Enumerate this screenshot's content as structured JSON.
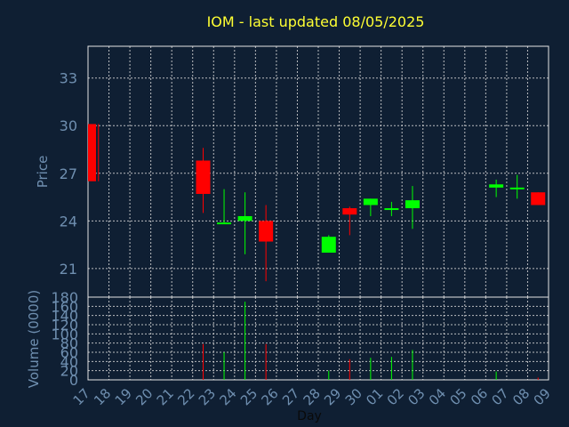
{
  "chart_data": {
    "type": "candlestick",
    "title": "IOM - last updated 08/05/2025",
    "xlabel": "Day",
    "colors": {
      "background": "#0f1f33",
      "grid": "#d8d8d8",
      "title": "#ffff33",
      "axis_text": "#6f8fb0",
      "frame": "#e6e6e6",
      "up": "#00ff00",
      "down": "#ff0000"
    },
    "x_ticks": [
      "17",
      "18",
      "19",
      "20",
      "21",
      "22",
      "23",
      "24",
      "25",
      "26",
      "27",
      "28",
      "29",
      "30",
      "01",
      "02",
      "03",
      "04",
      "05",
      "06",
      "07",
      "08",
      "09"
    ],
    "price_panel": {
      "ylabel": "Price",
      "ylim": [
        19.2,
        35.0
      ],
      "yticks": [
        21,
        24,
        27,
        30,
        33
      ]
    },
    "volume_panel": {
      "ylabel": "Volume (0000)",
      "ylim": [
        0,
        180
      ],
      "yticks": [
        0,
        20,
        40,
        60,
        80,
        100,
        120,
        140,
        160,
        180
      ]
    },
    "candles": [
      {
        "day": "17",
        "open": 30.1,
        "high": 30.1,
        "low": 26.5,
        "close": 26.5,
        "volume": 0
      },
      {
        "day": "22",
        "open": 27.8,
        "high": 28.6,
        "low": 24.5,
        "close": 25.7,
        "volume": 78
      },
      {
        "day": "23",
        "open": 23.8,
        "high": 26.0,
        "low": 23.8,
        "close": 23.9,
        "volume": 60
      },
      {
        "day": "24",
        "open": 24.0,
        "high": 25.8,
        "low": 21.9,
        "close": 24.3,
        "volume": 170
      },
      {
        "day": "25",
        "open": 24.0,
        "high": 25.0,
        "low": 20.2,
        "close": 22.7,
        "volume": 78
      },
      {
        "day": "28",
        "open": 22.0,
        "high": 23.1,
        "low": 22.0,
        "close": 23.0,
        "volume": 20
      },
      {
        "day": "29",
        "open": 24.8,
        "high": 24.9,
        "low": 23.1,
        "close": 24.4,
        "volume": 45
      },
      {
        "day": "30",
        "open": 25.0,
        "high": 25.4,
        "low": 24.3,
        "close": 25.4,
        "volume": 48
      },
      {
        "day": "01",
        "open": 24.7,
        "high": 25.2,
        "low": 24.3,
        "close": 24.8,
        "volume": 50
      },
      {
        "day": "02",
        "open": 24.8,
        "high": 26.2,
        "low": 23.5,
        "close": 25.3,
        "volume": 65
      },
      {
        "day": "06",
        "open": 26.1,
        "high": 26.6,
        "low": 25.5,
        "close": 26.3,
        "volume": 18
      },
      {
        "day": "07",
        "open": 26.0,
        "high": 26.9,
        "low": 25.4,
        "close": 26.1,
        "volume": 0
      },
      {
        "day": "08",
        "open": 25.8,
        "high": 25.8,
        "low": 25.0,
        "close": 25.0,
        "volume": 5
      }
    ]
  }
}
